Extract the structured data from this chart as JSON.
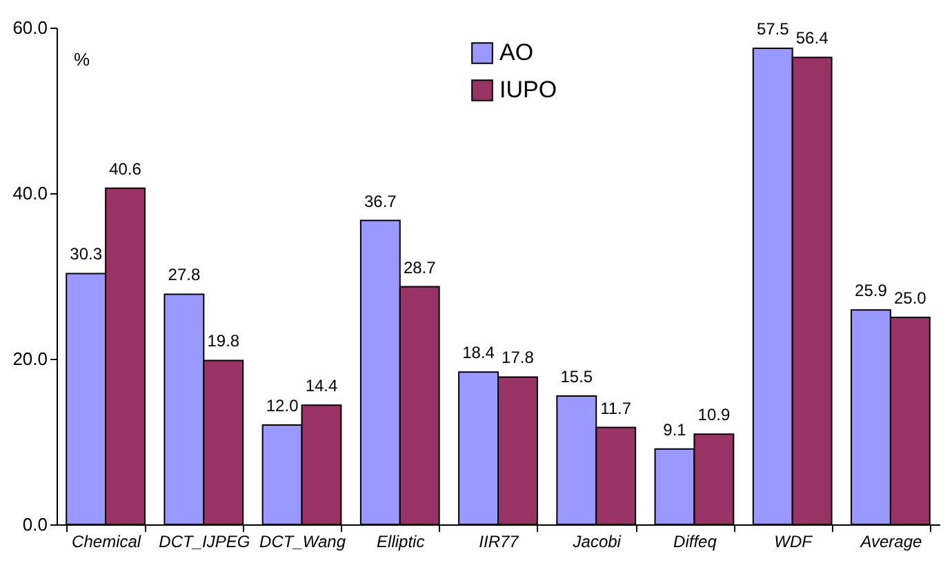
{
  "chart_data": {
    "type": "bar",
    "ylabel": "%",
    "categories": [
      "Chemical",
      "DCT_IJPEG",
      "DCT_Wang",
      "Elliptic",
      "IIR77",
      "Jacobi",
      "Diffeq",
      "WDF",
      "Average"
    ],
    "series": [
      {
        "name": "AO",
        "color": "#9999ff",
        "values": [
          30.3,
          27.8,
          12.0,
          36.7,
          18.4,
          15.5,
          9.1,
          57.5,
          25.9
        ],
        "value_labels": [
          "30.3",
          "27.8",
          "12.0",
          "36.7",
          "18.4",
          "15.5",
          "9.1",
          "57.5",
          "25.9"
        ]
      },
      {
        "name": "IUPO",
        "color": "#993366",
        "values": [
          40.6,
          19.8,
          14.4,
          28.7,
          17.8,
          11.7,
          10.9,
          56.4,
          25.0
        ],
        "value_labels": [
          "40.6",
          "19.8",
          "14.4",
          "28.7",
          "17.8",
          "11.7",
          "10.9",
          "56.4",
          "25.0"
        ]
      }
    ],
    "ylim": [
      0,
      60
    ],
    "yticks": [
      {
        "value": 0,
        "label": "0.0"
      },
      {
        "value": 20,
        "label": "20.0"
      },
      {
        "value": 40,
        "label": "40.0"
      },
      {
        "value": 60,
        "label": "60.0"
      }
    ],
    "grid": false,
    "legend": "top"
  }
}
